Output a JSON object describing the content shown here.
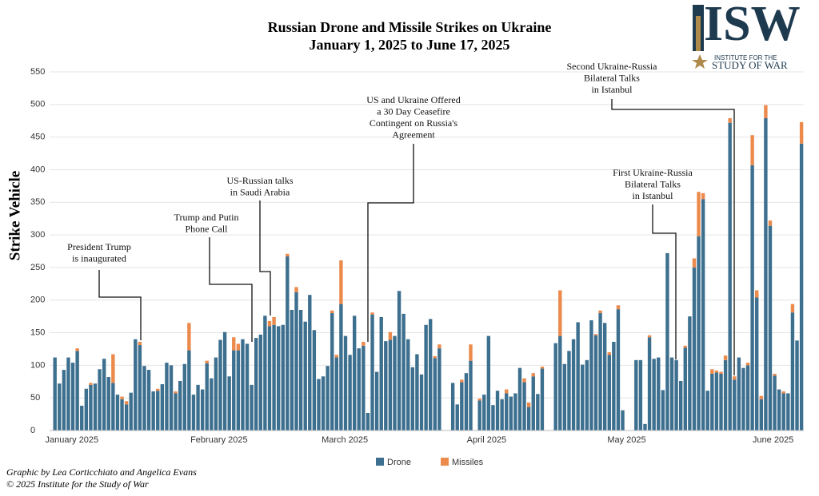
{
  "chart_data": {
    "type": "stacked-bar",
    "title": "Russian Drone and Missile Strikes on Ukraine",
    "subtitle": "January 1, 2025 to June 17, 2025",
    "y_label": "Strike Vehicle",
    "categories": [
      "January 2025",
      null,
      null,
      null,
      null,
      null,
      null,
      null,
      null,
      null,
      null,
      null,
      null,
      null,
      null,
      null,
      null,
      null,
      null,
      null,
      null,
      null,
      null,
      null,
      null,
      null,
      null,
      null,
      null,
      null,
      null,
      "February 2025",
      null,
      null,
      null,
      null,
      null,
      null,
      null,
      null,
      null,
      null,
      null,
      null,
      null,
      null,
      null,
      null,
      null,
      null,
      null,
      null,
      null,
      null,
      null,
      null,
      null,
      null,
      null,
      "March 2025",
      null,
      null,
      null,
      null,
      null,
      null,
      null,
      null,
      null,
      null,
      null,
      null,
      null,
      null,
      null,
      null,
      null,
      null,
      null,
      null,
      null,
      null,
      null,
      null,
      null,
      null,
      null,
      null,
      null,
      null,
      "April 2025",
      null,
      null,
      null,
      null,
      null,
      null,
      null,
      null,
      null,
      null,
      null,
      null,
      null,
      null,
      null,
      null,
      null,
      null,
      null,
      null,
      null,
      null,
      null,
      null,
      null,
      null,
      null,
      null,
      null,
      "May 2025",
      null,
      null,
      null,
      null,
      null,
      null,
      null,
      null,
      null,
      null,
      null,
      null,
      null,
      null,
      null,
      null,
      null,
      null,
      null,
      null,
      null,
      null,
      null,
      null,
      null,
      null,
      null,
      null,
      null,
      null,
      "June 2025",
      null,
      null,
      null,
      null,
      null,
      null,
      null,
      null,
      null,
      null,
      null,
      null,
      null,
      null,
      null,
      null
    ],
    "series": [
      {
        "name": "Drone",
        "color": "#3d6f8f",
        "values": [
          112,
          72,
          93,
          112,
          104,
          122,
          38,
          64,
          70,
          72,
          94,
          110,
          82,
          73,
          55,
          48,
          40,
          58,
          140,
          131,
          99,
          93,
          60,
          61,
          71,
          104,
          100,
          57,
          76,
          102,
          123,
          55,
          70,
          63,
          103,
          80,
          112,
          139,
          151,
          83,
          123,
          123,
          140,
          133,
          70,
          142,
          147,
          176,
          160,
          162,
          160,
          162,
          267,
          185,
          212,
          185,
          167,
          208,
          154,
          79,
          83,
          99,
          180,
          112,
          194,
          145,
          116,
          176,
          126,
          130,
          27,
          178,
          90,
          174,
          137,
          139,
          145,
          214,
          179,
          140,
          97,
          117,
          86,
          162,
          171,
          111,
          126,
          0,
          0,
          73,
          40,
          74,
          88,
          107,
          0,
          46,
          55,
          145,
          39,
          61,
          48,
          57,
          52,
          57,
          96,
          74,
          36,
          83,
          56,
          95,
          0,
          0,
          134,
          145,
          102,
          122,
          140,
          166,
          101,
          108,
          169,
          146,
          180,
          165,
          116,
          136,
          186,
          31,
          0,
          0,
          108,
          108,
          10,
          143,
          110,
          112,
          62,
          272,
          112,
          108,
          76,
          127,
          175,
          250,
          298,
          355,
          61,
          87,
          89,
          87,
          108,
          472,
          78,
          112,
          96,
          100,
          407,
          204,
          48,
          479,
          314,
          84,
          63,
          57,
          57,
          181,
          138,
          440
        ]
      },
      {
        "name": "Missiles",
        "color": "#ec8a4c",
        "values": [
          0,
          0,
          0,
          0,
          0,
          4,
          0,
          0,
          3,
          0,
          0,
          0,
          0,
          44,
          0,
          4,
          5,
          0,
          0,
          5,
          0,
          0,
          0,
          3,
          0,
          0,
          0,
          3,
          0,
          0,
          42,
          0,
          0,
          0,
          4,
          0,
          0,
          0,
          0,
          0,
          20,
          10,
          0,
          0,
          0,
          0,
          0,
          0,
          8,
          12,
          0,
          0,
          4,
          0,
          8,
          0,
          0,
          0,
          0,
          0,
          0,
          0,
          4,
          4,
          67,
          0,
          0,
          0,
          0,
          6,
          0,
          3,
          0,
          0,
          0,
          12,
          0,
          0,
          0,
          0,
          0,
          0,
          0,
          0,
          0,
          3,
          6,
          0,
          0,
          0,
          0,
          4,
          0,
          25,
          0,
          3,
          0,
          0,
          0,
          0,
          0,
          6,
          0,
          0,
          0,
          6,
          7,
          5,
          0,
          3,
          0,
          0,
          0,
          70,
          0,
          0,
          0,
          0,
          0,
          0,
          0,
          2,
          4,
          0,
          4,
          0,
          6,
          0,
          0,
          0,
          0,
          0,
          0,
          3,
          0,
          0,
          0,
          0,
          0,
          0,
          0,
          3,
          0,
          14,
          68,
          9,
          0,
          7,
          3,
          3,
          7,
          7,
          5,
          0,
          0,
          4,
          46,
          11,
          5,
          20,
          8,
          3,
          0,
          3,
          0,
          13,
          0,
          33
        ]
      }
    ],
    "ylim": [
      0,
      550
    ],
    "yticks": [
      0,
      50,
      100,
      150,
      200,
      250,
      300,
      350,
      400,
      450,
      500,
      550
    ],
    "grid": true,
    "annotations": [
      [
        "President Trump",
        "is inaugurated"
      ],
      [
        "Trump and Putin",
        "Phone Call"
      ],
      [
        "US-Russian talks",
        "in Saudi Arabia"
      ],
      [
        "US and Ukraine Offered",
        "a 30 Day Ceasefire",
        "Contingent on Russia's",
        "Agreement"
      ],
      [
        "First Ukraine-Russia",
        "Bilateral Talks",
        "in Istanbul"
      ],
      [
        "Second Ukraine-Russia",
        "Bilateral Talks",
        "in Istanbul"
      ]
    ],
    "credits": [
      "Graphic by Lea Corticchiato and Angelica Evans",
      "© 2025 Institute for the Study of War"
    ]
  },
  "logo": {
    "mark": "ISW",
    "line1": "INSTITUTE FOR THE",
    "line2": "STUDY OF WAR"
  }
}
